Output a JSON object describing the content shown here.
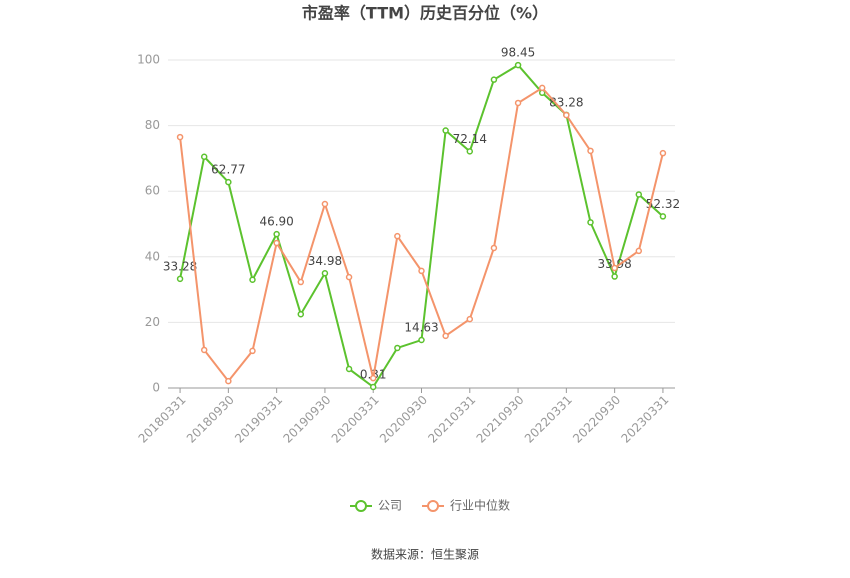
{
  "chart_data": {
    "type": "line",
    "title": "市盈率（TTM）历史百分位（%）",
    "categories": [
      "20180331",
      null,
      "20180930",
      null,
      "20190331",
      null,
      "20190930",
      null,
      "20200331",
      null,
      "20200930",
      null,
      "20210331",
      null,
      "20210930",
      null,
      "20220331",
      null,
      "20220930",
      null,
      "20230331"
    ],
    "series": [
      {
        "name": "公司",
        "color": "#5cc22e",
        "values": [
          33.28,
          70.5,
          62.77,
          33,
          46.9,
          22.5,
          34.98,
          5.8,
          0.31,
          12.2,
          14.63,
          78.5,
          72.14,
          94,
          98.45,
          90,
          83.28,
          50.5,
          33.98,
          59,
          52.32
        ],
        "value_labels": [
          "33.28",
          null,
          "62.77",
          null,
          "46.90",
          null,
          "34.98",
          null,
          "0.31",
          null,
          "14.63",
          null,
          "72.14",
          null,
          "98.45",
          null,
          "83.28",
          null,
          "33.98",
          null,
          "52.32"
        ]
      },
      {
        "name": "行业中位数",
        "color": "#f4946b",
        "values": [
          76.5,
          11.6,
          2.1,
          11.3,
          44.2,
          32.3,
          56.1,
          33.8,
          3,
          46.3,
          35.7,
          15.9,
          21,
          42.7,
          86.9,
          91.5,
          83.2,
          72.3,
          36.6,
          41.8,
          71.6
        ]
      }
    ],
    "ylim": [
      0,
      100
    ],
    "yticks": [
      0,
      20,
      40,
      60,
      80,
      100
    ],
    "grid": true,
    "source": "数据来源：恒生聚源"
  }
}
